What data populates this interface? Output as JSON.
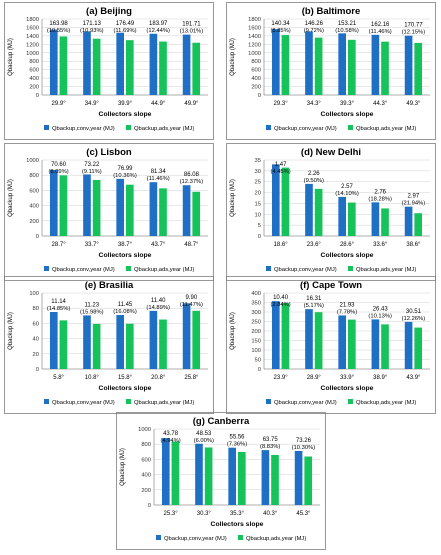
{
  "colors": {
    "conv": "#1f6fc5",
    "ads": "#16c25a",
    "frame": "#7f7f7f",
    "grid": "#d0d0d0"
  },
  "chart_data": [
    {
      "type": "bar",
      "title": "(a) Beijing",
      "xlabel": "Collectors slope",
      "ylabel": "Qbackup (MJ)",
      "categories": [
        "29.9°",
        "34.9°",
        "39.9°",
        "44.9°",
        "49.9°"
      ],
      "ylim": [
        0,
        1800
      ],
      "yticks": [
        "0",
        "200",
        "400",
        "600",
        "800",
        "1000",
        "1200",
        "1400",
        "1600",
        "1800"
      ],
      "series": [
        {
          "name": "Qbackup,conv,year (MJ)",
          "values": [
            1550,
            1505,
            1475,
            1450,
            1430
          ]
        },
        {
          "name": "Qbackup,ads,year (MJ)",
          "values": [
            1386,
            1334,
            1299,
            1266,
            1238
          ]
        }
      ],
      "annotations": [
        "163.98",
        "171.13",
        "176.49",
        "183.97",
        "191.71"
      ],
      "percents": [
        "(10.55%)",
        "(10.93%)",
        "(11.69%)",
        "(12.44%)",
        "(13.01%)"
      ]
    },
    {
      "type": "bar",
      "title": "(b) Baltimore",
      "xlabel": "Collectors slope",
      "ylabel": "Qbackup (MJ)",
      "categories": [
        "29.3°",
        "34.3°",
        "39.3°",
        "44.3°",
        "49.3°"
      ],
      "ylim": [
        0,
        1800
      ],
      "yticks": [
        "0",
        "200",
        "400",
        "600",
        "800",
        "1000",
        "1200",
        "1400",
        "1600",
        "1800"
      ],
      "series": [
        {
          "name": "Qbackup,conv,year (MJ)",
          "values": [
            1560,
            1505,
            1460,
            1425,
            1405
          ]
        },
        {
          "name": "Qbackup,ads,year (MJ)",
          "values": [
            1420,
            1359,
            1307,
            1263,
            1234
          ]
        }
      ],
      "annotations": [
        "140.34",
        "146.26",
        "153.21",
        "162.16",
        "170.77"
      ],
      "percents": [
        "(8.85%)",
        "(9.72%)",
        "(10.58%)",
        "(11.46%)",
        "(12.15%)"
      ]
    },
    {
      "type": "bar",
      "title": "(c) Lisbon",
      "xlabel": "Collectors slope",
      "ylabel": "Qbackup (MJ)",
      "categories": [
        "28.7°",
        "33.7°",
        "38.7°",
        "43.7°",
        "48.7°"
      ],
      "ylim": [
        0,
        1000
      ],
      "yticks": [
        "0",
        "200",
        "400",
        "600",
        "800",
        "1000"
      ],
      "series": [
        {
          "name": "Qbackup,conv,year (MJ)",
          "values": [
            868,
            810,
            752,
            708,
            668
          ]
        },
        {
          "name": "Qbackup,ads,year (MJ)",
          "values": [
            797,
            737,
            675,
            627,
            582
          ]
        }
      ],
      "annotations": [
        "70.60",
        "73.22",
        "76.99",
        "81.34",
        "86.08"
      ],
      "percents": [
        "(8.09%)",
        "(9.11%)",
        "(10.36%)",
        "(11.46%)",
        "(12.37%)"
      ]
    },
    {
      "type": "bar",
      "title": "(d) New Delhi",
      "xlabel": "Collectors slope",
      "ylabel": "Qbackup (MJ)",
      "categories": [
        "18.6°",
        "23.6°",
        "28.6°",
        "33.6°",
        "38.6°"
      ],
      "ylim": [
        0,
        35
      ],
      "yticks": [
        "0",
        "5",
        "10",
        "15",
        "20",
        "25",
        "30",
        "35"
      ],
      "series": [
        {
          "name": "Qbackup,conv,year (MJ)",
          "values": [
            33,
            24,
            18,
            15.5,
            13.5
          ]
        },
        {
          "name": "Qbackup,ads,year (MJ)",
          "values": [
            31.5,
            21.7,
            15.4,
            12.7,
            10.5
          ]
        }
      ],
      "annotations": [
        "1.47",
        "2.26",
        "2.57",
        "2.76",
        "2.97"
      ],
      "percents": [
        "(4.45%)",
        "(9.50%)",
        "(14.10%)",
        "(18.28%)",
        "(21.94%)"
      ]
    },
    {
      "type": "bar",
      "title": "(e) Brasilia",
      "xlabel": "Collectors slope",
      "ylabel": "Qbackup (MJ)",
      "categories": [
        "5.8°",
        "10.8°",
        "15.8°",
        "20.8°",
        "25.8°"
      ],
      "ylim": [
        0,
        100
      ],
      "yticks": [
        "0",
        "20",
        "40",
        "60",
        "80",
        "100"
      ],
      "series": [
        {
          "name": "Qbackup,conv,year (MJ)",
          "values": [
            75,
            70.5,
            71,
            76.5,
            86.5
          ]
        },
        {
          "name": "Qbackup,ads,year (MJ)",
          "values": [
            64,
            59.3,
            59.5,
            65.1,
            76.6
          ]
        }
      ],
      "annotations": [
        "11.14",
        "11.23",
        "11.45",
        "11.40",
        "9.90"
      ],
      "percents": [
        "(14.85%)",
        "(15.98%)",
        "(16.08%)",
        "(14.89%)",
        "(11.47%)"
      ]
    },
    {
      "type": "bar",
      "title": "(f) Cape Town",
      "xlabel": "Collectors slope",
      "ylabel": "Qbackup (MJ)",
      "categories": [
        "23.9°",
        "28.9°",
        "33.9°",
        "38.9°",
        "43.9°"
      ],
      "ylim": [
        0,
        400
      ],
      "yticks": [
        "0",
        "50",
        "100",
        "150",
        "200",
        "250",
        "300",
        "350",
        "400"
      ],
      "series": [
        {
          "name": "Qbackup,conv,year (MJ)",
          "values": [
            357,
            315,
            282,
            261,
            248
          ]
        },
        {
          "name": "Qbackup,ads,year (MJ)",
          "values": [
            347,
            299,
            260,
            235,
            218
          ]
        }
      ],
      "annotations": [
        "10.40",
        "16.31",
        "21.93",
        "26.43",
        "30.51"
      ],
      "percents": [
        "(2.84%)",
        "(5.17%)",
        "(7.78%)",
        "(10.13%)",
        "(12.26%)"
      ]
    },
    {
      "type": "bar",
      "title": "(g) Canberra",
      "xlabel": "Collectors slope",
      "ylabel": "Qbackup (MJ)",
      "categories": [
        "25.3°",
        "30.3°",
        "35.3°",
        "40.3°",
        "45.3°"
      ],
      "ylim": [
        0,
        1000
      ],
      "yticks": [
        "0",
        "200",
        "400",
        "600",
        "800",
        "1000"
      ],
      "series": [
        {
          "name": "Qbackup,conv,year (MJ)",
          "values": [
            880,
            806,
            754,
            722,
            711
          ]
        },
        {
          "name": "Qbackup,ads,year (MJ)",
          "values": [
            836,
            757,
            698,
            658,
            638
          ]
        }
      ],
      "annotations": [
        "43.78",
        "48.53",
        "55.56",
        "63.75",
        "73.26"
      ],
      "percents": [
        "(4.94%)",
        "(6.00%)",
        "(7.36%)",
        "(8.83%)",
        "(10.30%)"
      ]
    }
  ]
}
